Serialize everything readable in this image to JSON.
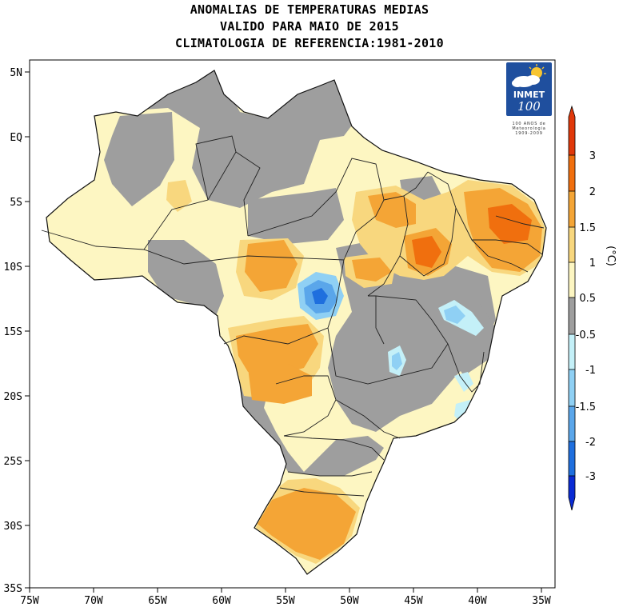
{
  "title": {
    "line1": "ANOMALIAS DE TEMPERATURAS MEDIAS",
    "line2": "VALIDO PARA MAIO DE 2015",
    "line3": "CLIMATOLOGIA DE REFERENCIA:1981-2010"
  },
  "axes": {
    "x_ticks": [
      "75W",
      "70W",
      "65W",
      "60W",
      "55W",
      "50W",
      "45W",
      "40W",
      "35W"
    ],
    "y_ticks": [
      "5N",
      "EQ",
      "5S",
      "10S",
      "15S",
      "20S",
      "25S",
      "30S",
      "35S"
    ]
  },
  "legend": {
    "unit": "(°C)",
    "levels": [
      "3",
      "2",
      "1.5",
      "1",
      "0.5",
      "-0.5",
      "-1",
      "-1.5",
      "-2",
      "-3"
    ],
    "colors": [
      "#e0380a",
      "#f06f0e",
      "#f4a536",
      "#f8d77e",
      "#fdf6c2",
      "#9e9e9e",
      "#c4f0f8",
      "#8fd0f4",
      "#5aa6ea",
      "#1f6fde",
      "#0a2bd4"
    ]
  },
  "logo": {
    "name": "INMET",
    "number": "100",
    "caption": "100 ANOS de Meteorologia 1909-2009",
    "icon": "cloud-sun-icon"
  },
  "chart_data": {
    "type": "heatmap",
    "title": "ANOMALIAS DE TEMPERATURAS MEDIAS",
    "subtitle": "VALIDO PARA MAIO DE 2015 / CLIMATOLOGIA DE REFERENCIA:1981-2010",
    "xlabel": "",
    "ylabel": "",
    "x_range": [
      "75W",
      "35W"
    ],
    "y_range": [
      "35S",
      "5N"
    ],
    "colorbar_unit": "(°C)",
    "colorbar_levels": [
      -3,
      -2,
      -1.5,
      -1,
      -0.5,
      0.5,
      1,
      1.5,
      2,
      3
    ],
    "colors": {
      "lt_-3": "#0a2bd4",
      "-3_-2": "#1f6fde",
      "-2_-1.5": "#5aa6ea",
      "-1.5_-1": "#8fd0f4",
      "-1_-0.5": "#c4f0f8",
      "-0.5_0.5": "#9e9e9e",
      "0.5_1": "#fdf6c2",
      "1_1.5": "#f8d77e",
      "1.5_2": "#f4a536",
      "2_3": "#f06f0e",
      "gt_3": "#e0380a"
    }
  }
}
